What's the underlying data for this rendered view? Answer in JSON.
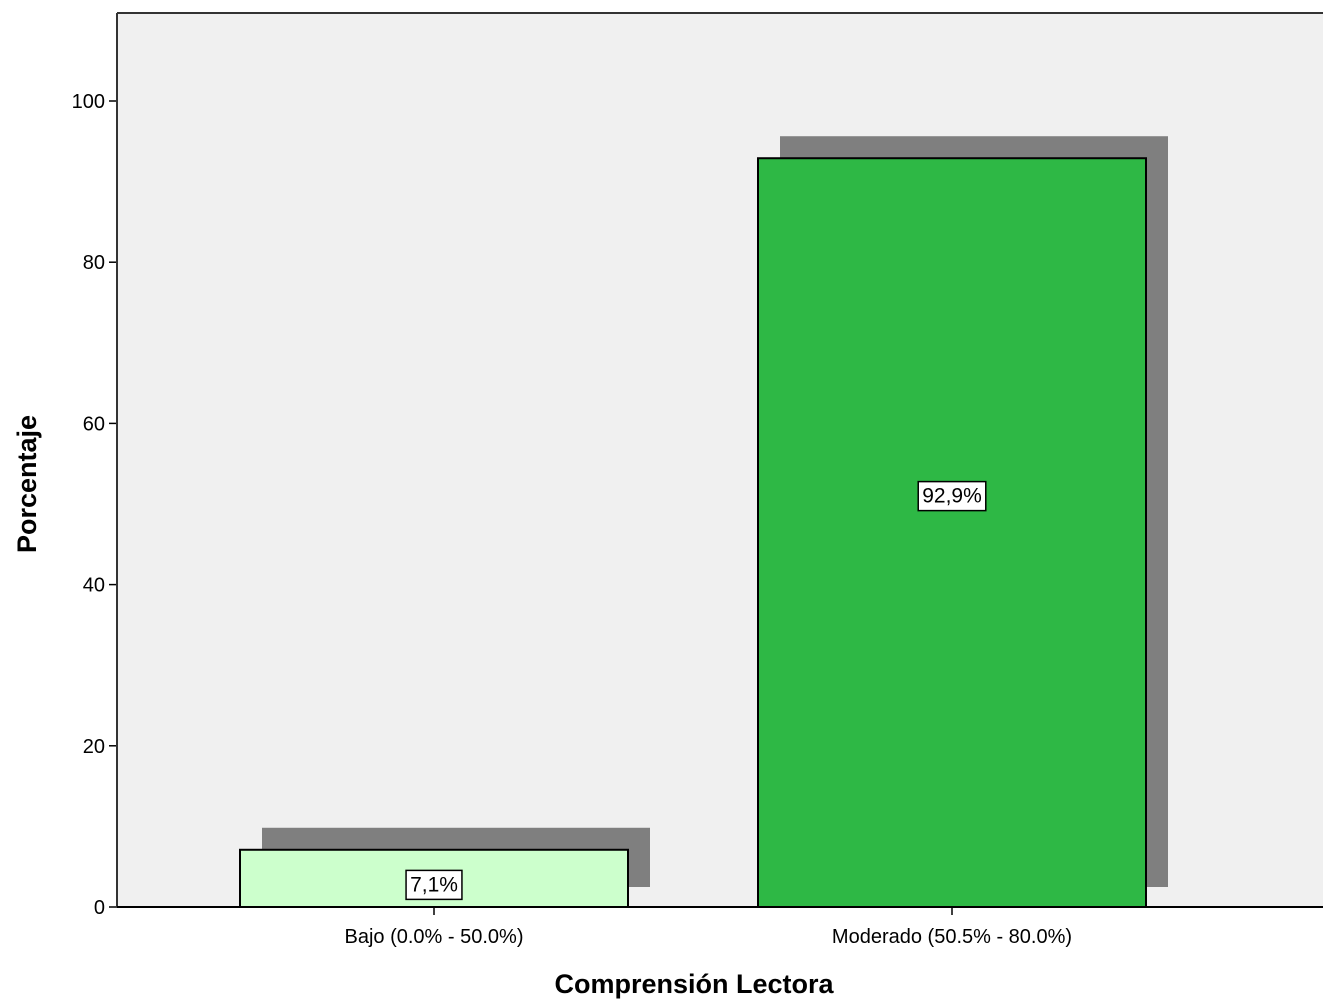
{
  "chart_data": {
    "type": "bar",
    "categories": [
      "Bajo (0.0% - 50.0%)",
      "Moderado (50.5% - 80.0%)"
    ],
    "values": [
      7.1,
      92.9
    ],
    "data_labels": [
      "7,1%",
      "92,9%"
    ],
    "xlabel": "Comprensión Lectora",
    "ylabel": "Porcentaje",
    "ylim": [
      0,
      110
    ],
    "yticks": [
      0,
      20,
      40,
      60,
      80,
      100
    ],
    "ytick_labels": [
      "0",
      "20",
      "40",
      "60",
      "80",
      "100"
    ],
    "grid": false,
    "bar_shadow": true,
    "colors": {
      "plot_background": "#f0f0f0",
      "bars": [
        "#ccffcc",
        "#2eb845"
      ],
      "shadow": "#7f7f7f",
      "bar_edge": "#000000"
    }
  }
}
